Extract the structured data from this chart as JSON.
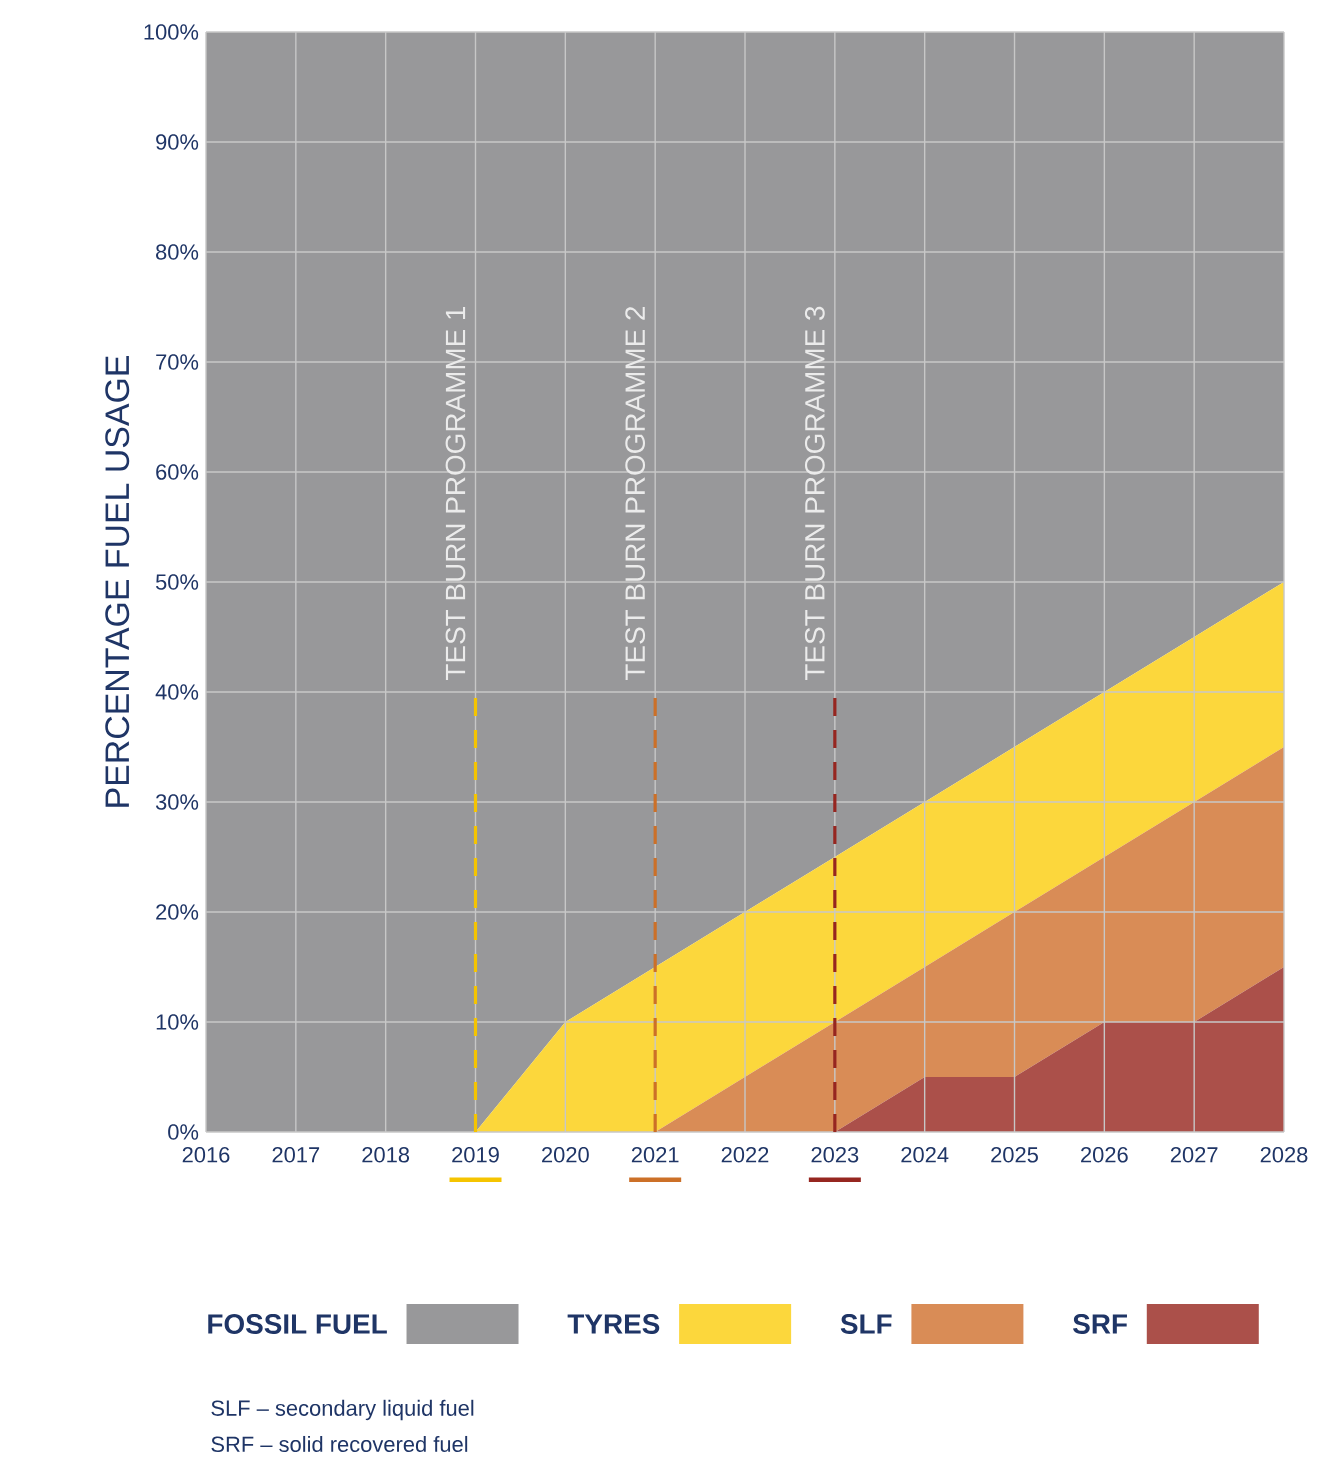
{
  "chart_data": {
    "type": "area",
    "stacked": true,
    "ylabel": "PERCENTAGE FUEL USAGE",
    "x": [
      2016,
      2017,
      2018,
      2019,
      2020,
      2021,
      2022,
      2023,
      2024,
      2025,
      2026,
      2027,
      2028
    ],
    "series": [
      {
        "name": "SRF",
        "color": "#ab504a",
        "values": [
          0,
          0,
          0,
          0,
          0,
          0,
          0,
          0,
          5,
          5,
          10,
          10,
          15
        ]
      },
      {
        "name": "SLF",
        "color": "#d98c56",
        "values": [
          0,
          0,
          0,
          0,
          0,
          0,
          5,
          10,
          10,
          15,
          15,
          20,
          20
        ]
      },
      {
        "name": "TYRES",
        "color": "#fcd73c",
        "values": [
          0,
          0,
          0,
          0,
          10,
          15,
          15,
          15,
          15,
          15,
          15,
          15,
          15
        ]
      },
      {
        "name": "FOSSIL FUEL",
        "color": "#98989a",
        "values": [
          100,
          100,
          100,
          100,
          90,
          85,
          80,
          75,
          70,
          65,
          60,
          55,
          50
        ]
      }
    ],
    "xlim": [
      2016,
      2028
    ],
    "ylim": [
      0,
      100
    ],
    "xticks": [
      2016,
      2017,
      2018,
      2019,
      2020,
      2021,
      2022,
      2023,
      2024,
      2025,
      2026,
      2027,
      2028
    ],
    "yticks": [
      {
        "value": 0,
        "label": "0%"
      },
      {
        "value": 10,
        "label": "10%"
      },
      {
        "value": 20,
        "label": "20%"
      },
      {
        "value": 30,
        "label": "30%"
      },
      {
        "value": 40,
        "label": "40%"
      },
      {
        "value": 50,
        "label": "50%"
      },
      {
        "value": 60,
        "label": "60%"
      },
      {
        "value": 70,
        "label": "70%"
      },
      {
        "value": 80,
        "label": "80%"
      },
      {
        "value": 90,
        "label": "90%"
      },
      {
        "value": 100,
        "label": "100%"
      }
    ],
    "ref_lines": [
      {
        "axis": "x",
        "value": 2019,
        "label": "TEST BURN PROGRAMME 1",
        "color": "#f5c400",
        "line_style": "dashed"
      },
      {
        "axis": "x",
        "value": 2021,
        "label": "TEST BURN PROGRAMME 2",
        "color": "#cc7028",
        "line_style": "dashed"
      },
      {
        "axis": "x",
        "value": 2023,
        "label": "TEST BURN PROGRAMME 3",
        "color": "#962620",
        "line_style": "dashed"
      }
    ],
    "grid": true,
    "legend": "bottom",
    "marker": "none",
    "annotations": [
      "SLF – secondary liquid fuel",
      "SRF – solid recovered fuel"
    ]
  }
}
